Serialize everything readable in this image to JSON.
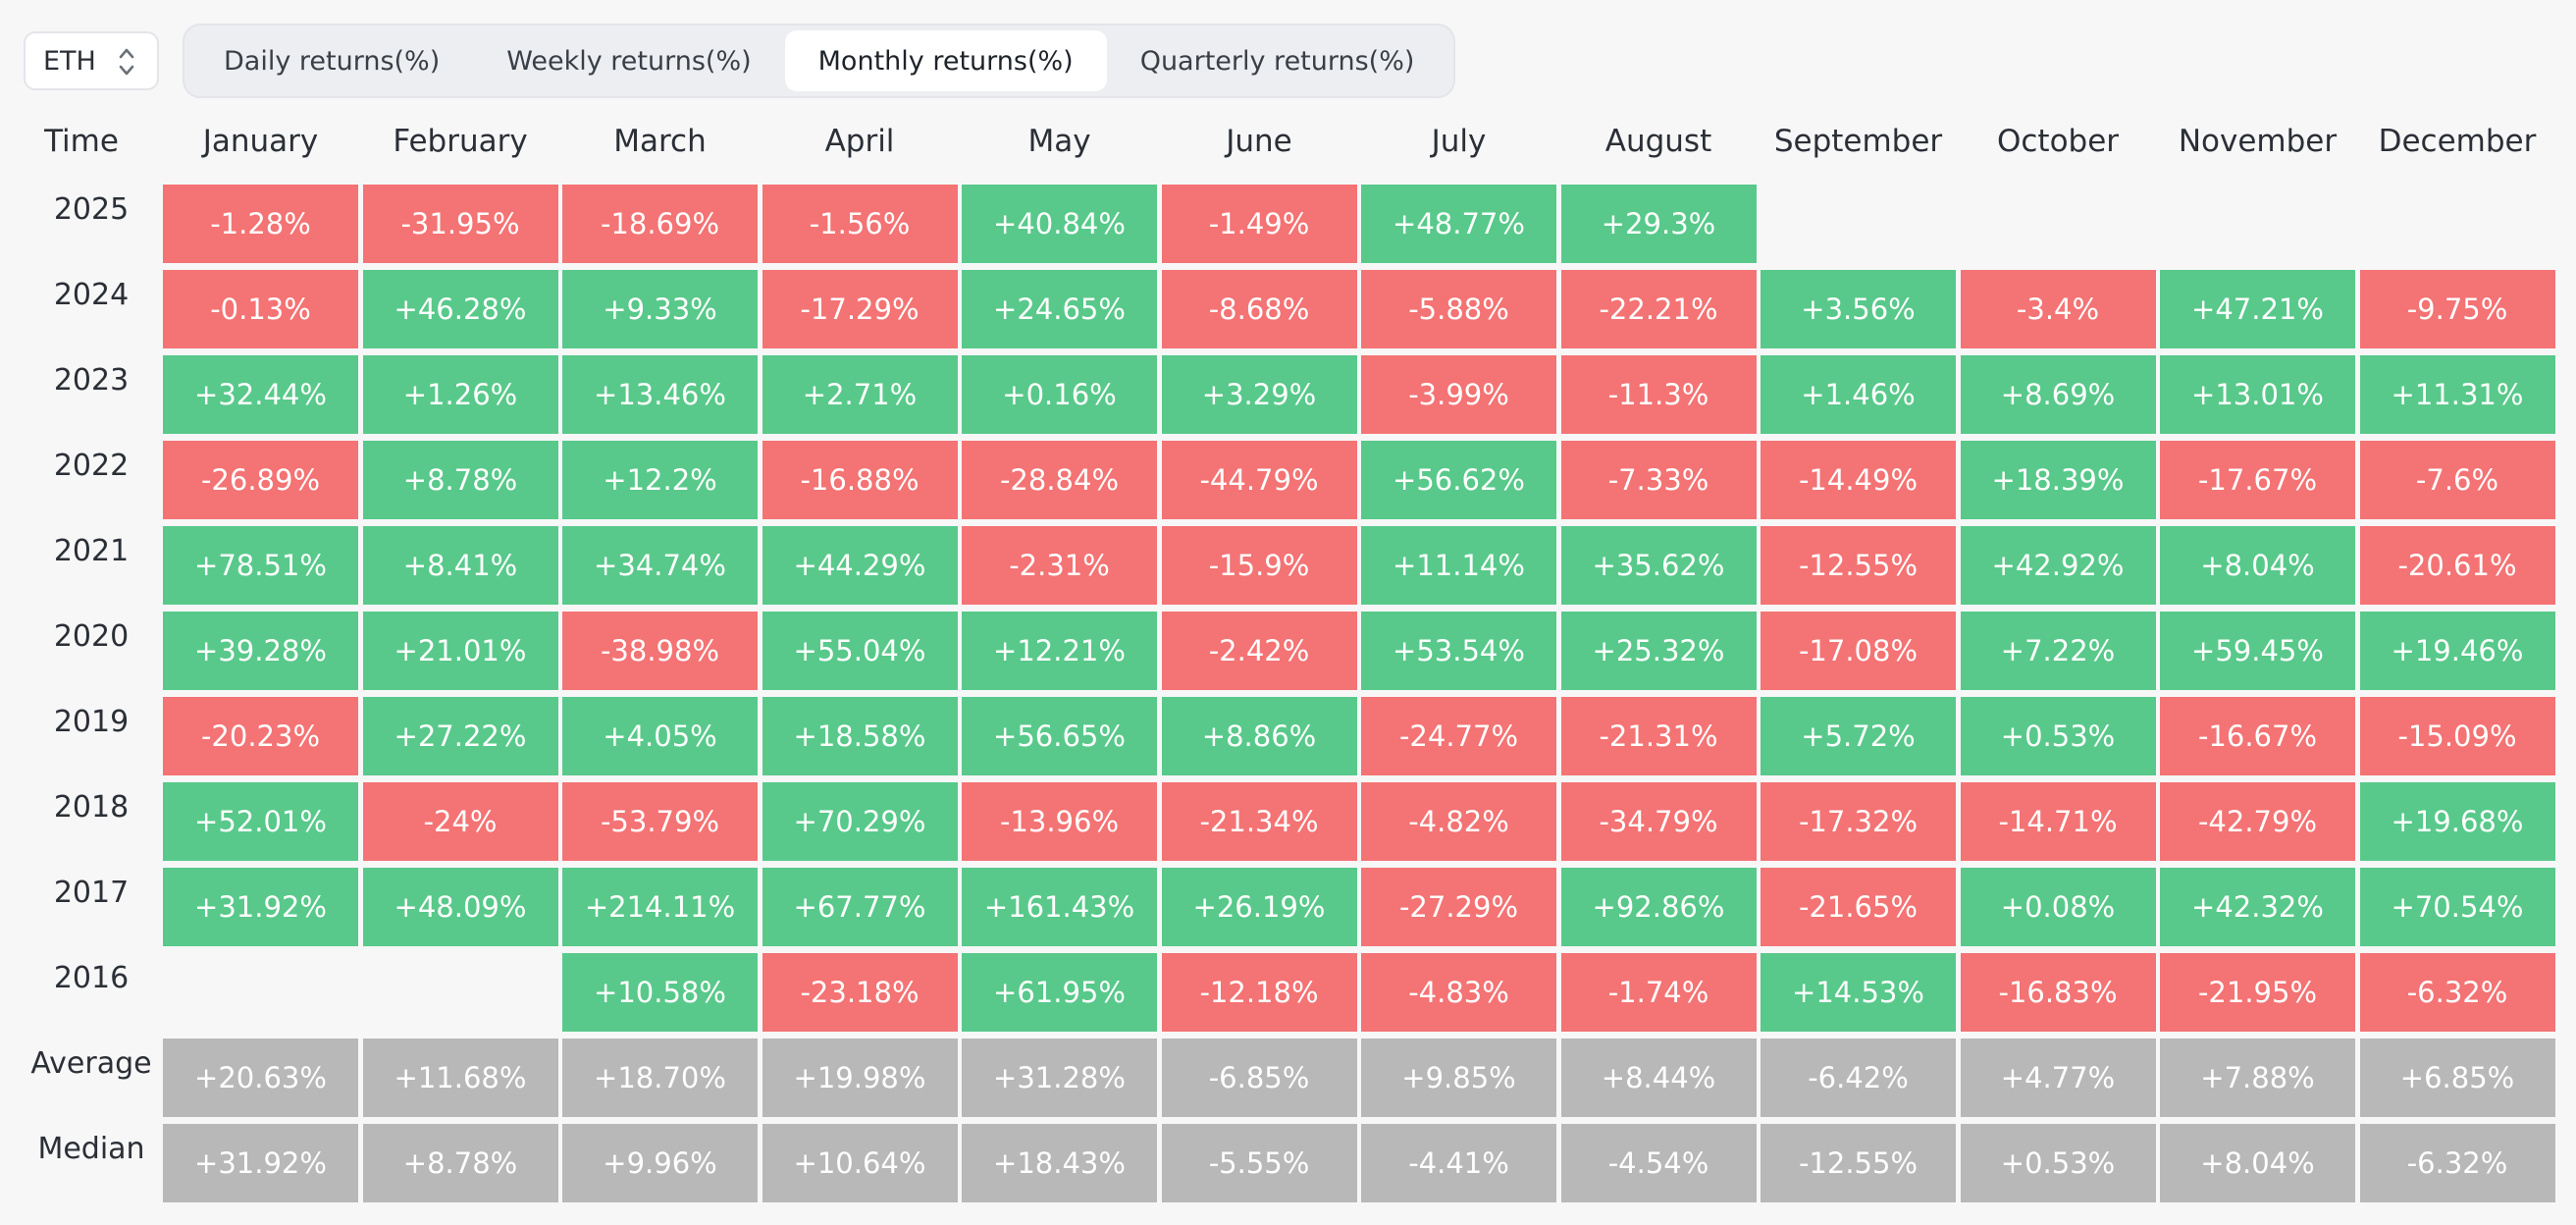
{
  "asset_select": {
    "value": "ETH"
  },
  "tabs": [
    {
      "label": "Daily returns(%)",
      "active": false
    },
    {
      "label": "Weekly returns(%)",
      "active": false
    },
    {
      "label": "Monthly returns(%)",
      "active": true
    },
    {
      "label": "Quarterly returns(%)",
      "active": false
    }
  ],
  "table": {
    "corner_label": "Time",
    "months": [
      "January",
      "February",
      "March",
      "April",
      "May",
      "June",
      "July",
      "August",
      "September",
      "October",
      "November",
      "December"
    ],
    "rows": [
      {
        "year": "2025",
        "values": [
          "-1.28%",
          "-31.95%",
          "-18.69%",
          "-1.56%",
          "+40.84%",
          "-1.49%",
          "+48.77%",
          "+29.3%",
          "",
          "",
          "",
          ""
        ]
      },
      {
        "year": "2024",
        "values": [
          "-0.13%",
          "+46.28%",
          "+9.33%",
          "-17.29%",
          "+24.65%",
          "-8.68%",
          "-5.88%",
          "-22.21%",
          "+3.56%",
          "-3.4%",
          "+47.21%",
          "-9.75%"
        ]
      },
      {
        "year": "2023",
        "values": [
          "+32.44%",
          "+1.26%",
          "+13.46%",
          "+2.71%",
          "+0.16%",
          "+3.29%",
          "-3.99%",
          "-11.3%",
          "+1.46%",
          "+8.69%",
          "+13.01%",
          "+11.31%"
        ]
      },
      {
        "year": "2022",
        "values": [
          "-26.89%",
          "+8.78%",
          "+12.2%",
          "-16.88%",
          "-28.84%",
          "-44.79%",
          "+56.62%",
          "-7.33%",
          "-14.49%",
          "+18.39%",
          "-17.67%",
          "-7.6%"
        ]
      },
      {
        "year": "2021",
        "values": [
          "+78.51%",
          "+8.41%",
          "+34.74%",
          "+44.29%",
          "-2.31%",
          "-15.9%",
          "+11.14%",
          "+35.62%",
          "-12.55%",
          "+42.92%",
          "+8.04%",
          "-20.61%"
        ]
      },
      {
        "year": "2020",
        "values": [
          "+39.28%",
          "+21.01%",
          "-38.98%",
          "+55.04%",
          "+12.21%",
          "-2.42%",
          "+53.54%",
          "+25.32%",
          "-17.08%",
          "+7.22%",
          "+59.45%",
          "+19.46%"
        ]
      },
      {
        "year": "2019",
        "values": [
          "-20.23%",
          "+27.22%",
          "+4.05%",
          "+18.58%",
          "+56.65%",
          "+8.86%",
          "-24.77%",
          "-21.31%",
          "+5.72%",
          "+0.53%",
          "-16.67%",
          "-15.09%"
        ]
      },
      {
        "year": "2018",
        "values": [
          "+52.01%",
          "-24%",
          "-53.79%",
          "+70.29%",
          "-13.96%",
          "-21.34%",
          "-4.82%",
          "-34.79%",
          "-17.32%",
          "-14.71%",
          "-42.79%",
          "+19.68%"
        ]
      },
      {
        "year": "2017",
        "values": [
          "+31.92%",
          "+48.09%",
          "+214.11%",
          "+67.77%",
          "+161.43%",
          "+26.19%",
          "-27.29%",
          "+92.86%",
          "-21.65%",
          "+0.08%",
          "+42.32%",
          "+70.54%"
        ]
      },
      {
        "year": "2016",
        "values": [
          "",
          "",
          "+10.58%",
          "-23.18%",
          "+61.95%",
          "-12.18%",
          "-4.83%",
          "-1.74%",
          "+14.53%",
          "-16.83%",
          "-21.95%",
          "-6.32%"
        ]
      }
    ],
    "stats": [
      {
        "label": "Average",
        "values": [
          "+20.63%",
          "+11.68%",
          "+18.70%",
          "+19.98%",
          "+31.28%",
          "-6.85%",
          "+9.85%",
          "+8.44%",
          "-6.42%",
          "+4.77%",
          "+7.88%",
          "+6.85%"
        ]
      },
      {
        "label": "Median",
        "values": [
          "+31.92%",
          "+8.78%",
          "+9.96%",
          "+10.64%",
          "+18.43%",
          "-5.55%",
          "-4.41%",
          "-4.54%",
          "-12.55%",
          "+0.53%",
          "+8.04%",
          "-6.32%"
        ]
      }
    ]
  },
  "colors": {
    "positive": "#58c98a",
    "negative": "#f47374",
    "stat": "#b8b8b8"
  }
}
